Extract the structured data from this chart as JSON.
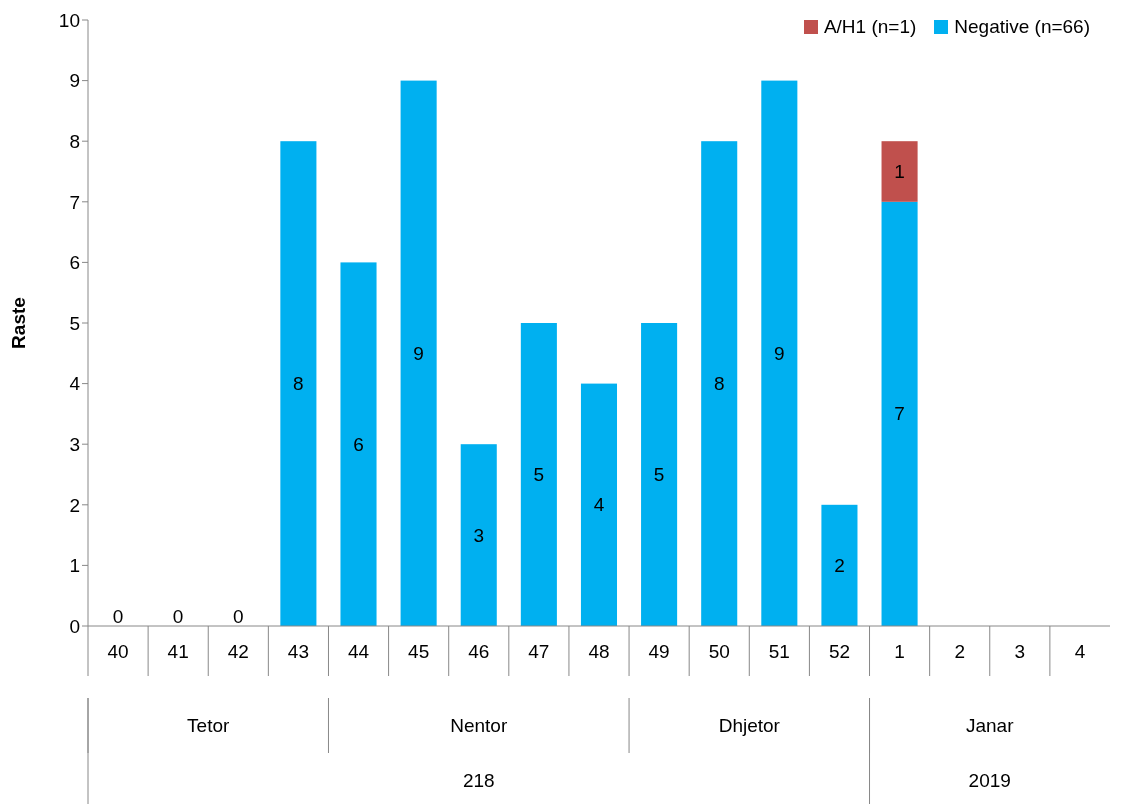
{
  "chart_data": {
    "type": "bar",
    "ylabel": "Raste",
    "categories": [
      "40",
      "41",
      "42",
      "43",
      "44",
      "45",
      "46",
      "47",
      "48",
      "49",
      "50",
      "51",
      "52",
      "1",
      "2",
      "3",
      "4"
    ],
    "series": [
      {
        "name": "Negative (n=66)",
        "color": "#00b0f0",
        "values": [
          0,
          0,
          0,
          8,
          6,
          9,
          3,
          5,
          4,
          5,
          8,
          9,
          2,
          7,
          null,
          null,
          null
        ],
        "value_labels": [
          "0",
          "0",
          "0",
          "8",
          "6",
          "9",
          "3",
          "5",
          "4",
          "5",
          "8",
          "9",
          "2",
          "7",
          null,
          null,
          null
        ]
      },
      {
        "name": "A/H1 (n=1)",
        "color": "#c0504d",
        "values": [
          null,
          null,
          null,
          null,
          null,
          null,
          null,
          null,
          null,
          null,
          null,
          null,
          null,
          1,
          null,
          null,
          null
        ],
        "value_labels": [
          null,
          null,
          null,
          null,
          null,
          null,
          null,
          null,
          null,
          null,
          null,
          null,
          null,
          "1",
          null,
          null,
          null
        ]
      }
    ],
    "stacked": true,
    "ylim": [
      0,
      10
    ],
    "yticks": [
      0,
      1,
      2,
      3,
      4,
      5,
      6,
      7,
      8,
      9,
      10
    ],
    "grid": false,
    "legend": "top right",
    "annotations": [
      "Tetor",
      "Nentor",
      "Dhjetor",
      "Janar",
      "218",
      "2019"
    ]
  }
}
